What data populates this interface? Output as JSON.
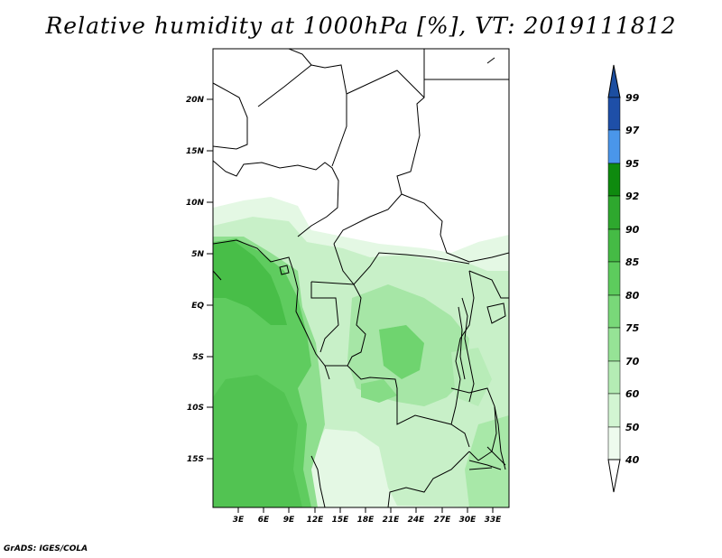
{
  "title": "Relative humidity at 1000hPa [%], VT: 2019111812",
  "credit": "GrADS: IGES/COLA",
  "map": {
    "lat_labels": [
      "20N",
      "15N",
      "10N",
      "5N",
      "EQ",
      "5S",
      "10S",
      "15S"
    ],
    "lon_labels": [
      "3E",
      "6E",
      "9E",
      "12E",
      "15E",
      "18E",
      "21E",
      "24E",
      "27E",
      "30E",
      "33E"
    ]
  },
  "colorbar": {
    "levels": [
      "99",
      "97",
      "95",
      "92",
      "90",
      "85",
      "80",
      "75",
      "70",
      "60",
      "50",
      "40"
    ],
    "colors": [
      "#1e4fa8",
      "#2a6fd6",
      "#4a96ea",
      "#0e8a0e",
      "#2ea82e",
      "#45bb45",
      "#5dcc5d",
      "#79d879",
      "#96e396",
      "#b4ecb4",
      "#d2f5d2",
      "#eefbee"
    ],
    "arrow_top_color": "#1c4ea0",
    "arrow_bottom_color": "#ffffff"
  },
  "colors": {
    "humid_high": "#4cc44c",
    "humid_mid": "#8ee08e",
    "humid_low": "#cdf2cd",
    "border": "#000000"
  }
}
